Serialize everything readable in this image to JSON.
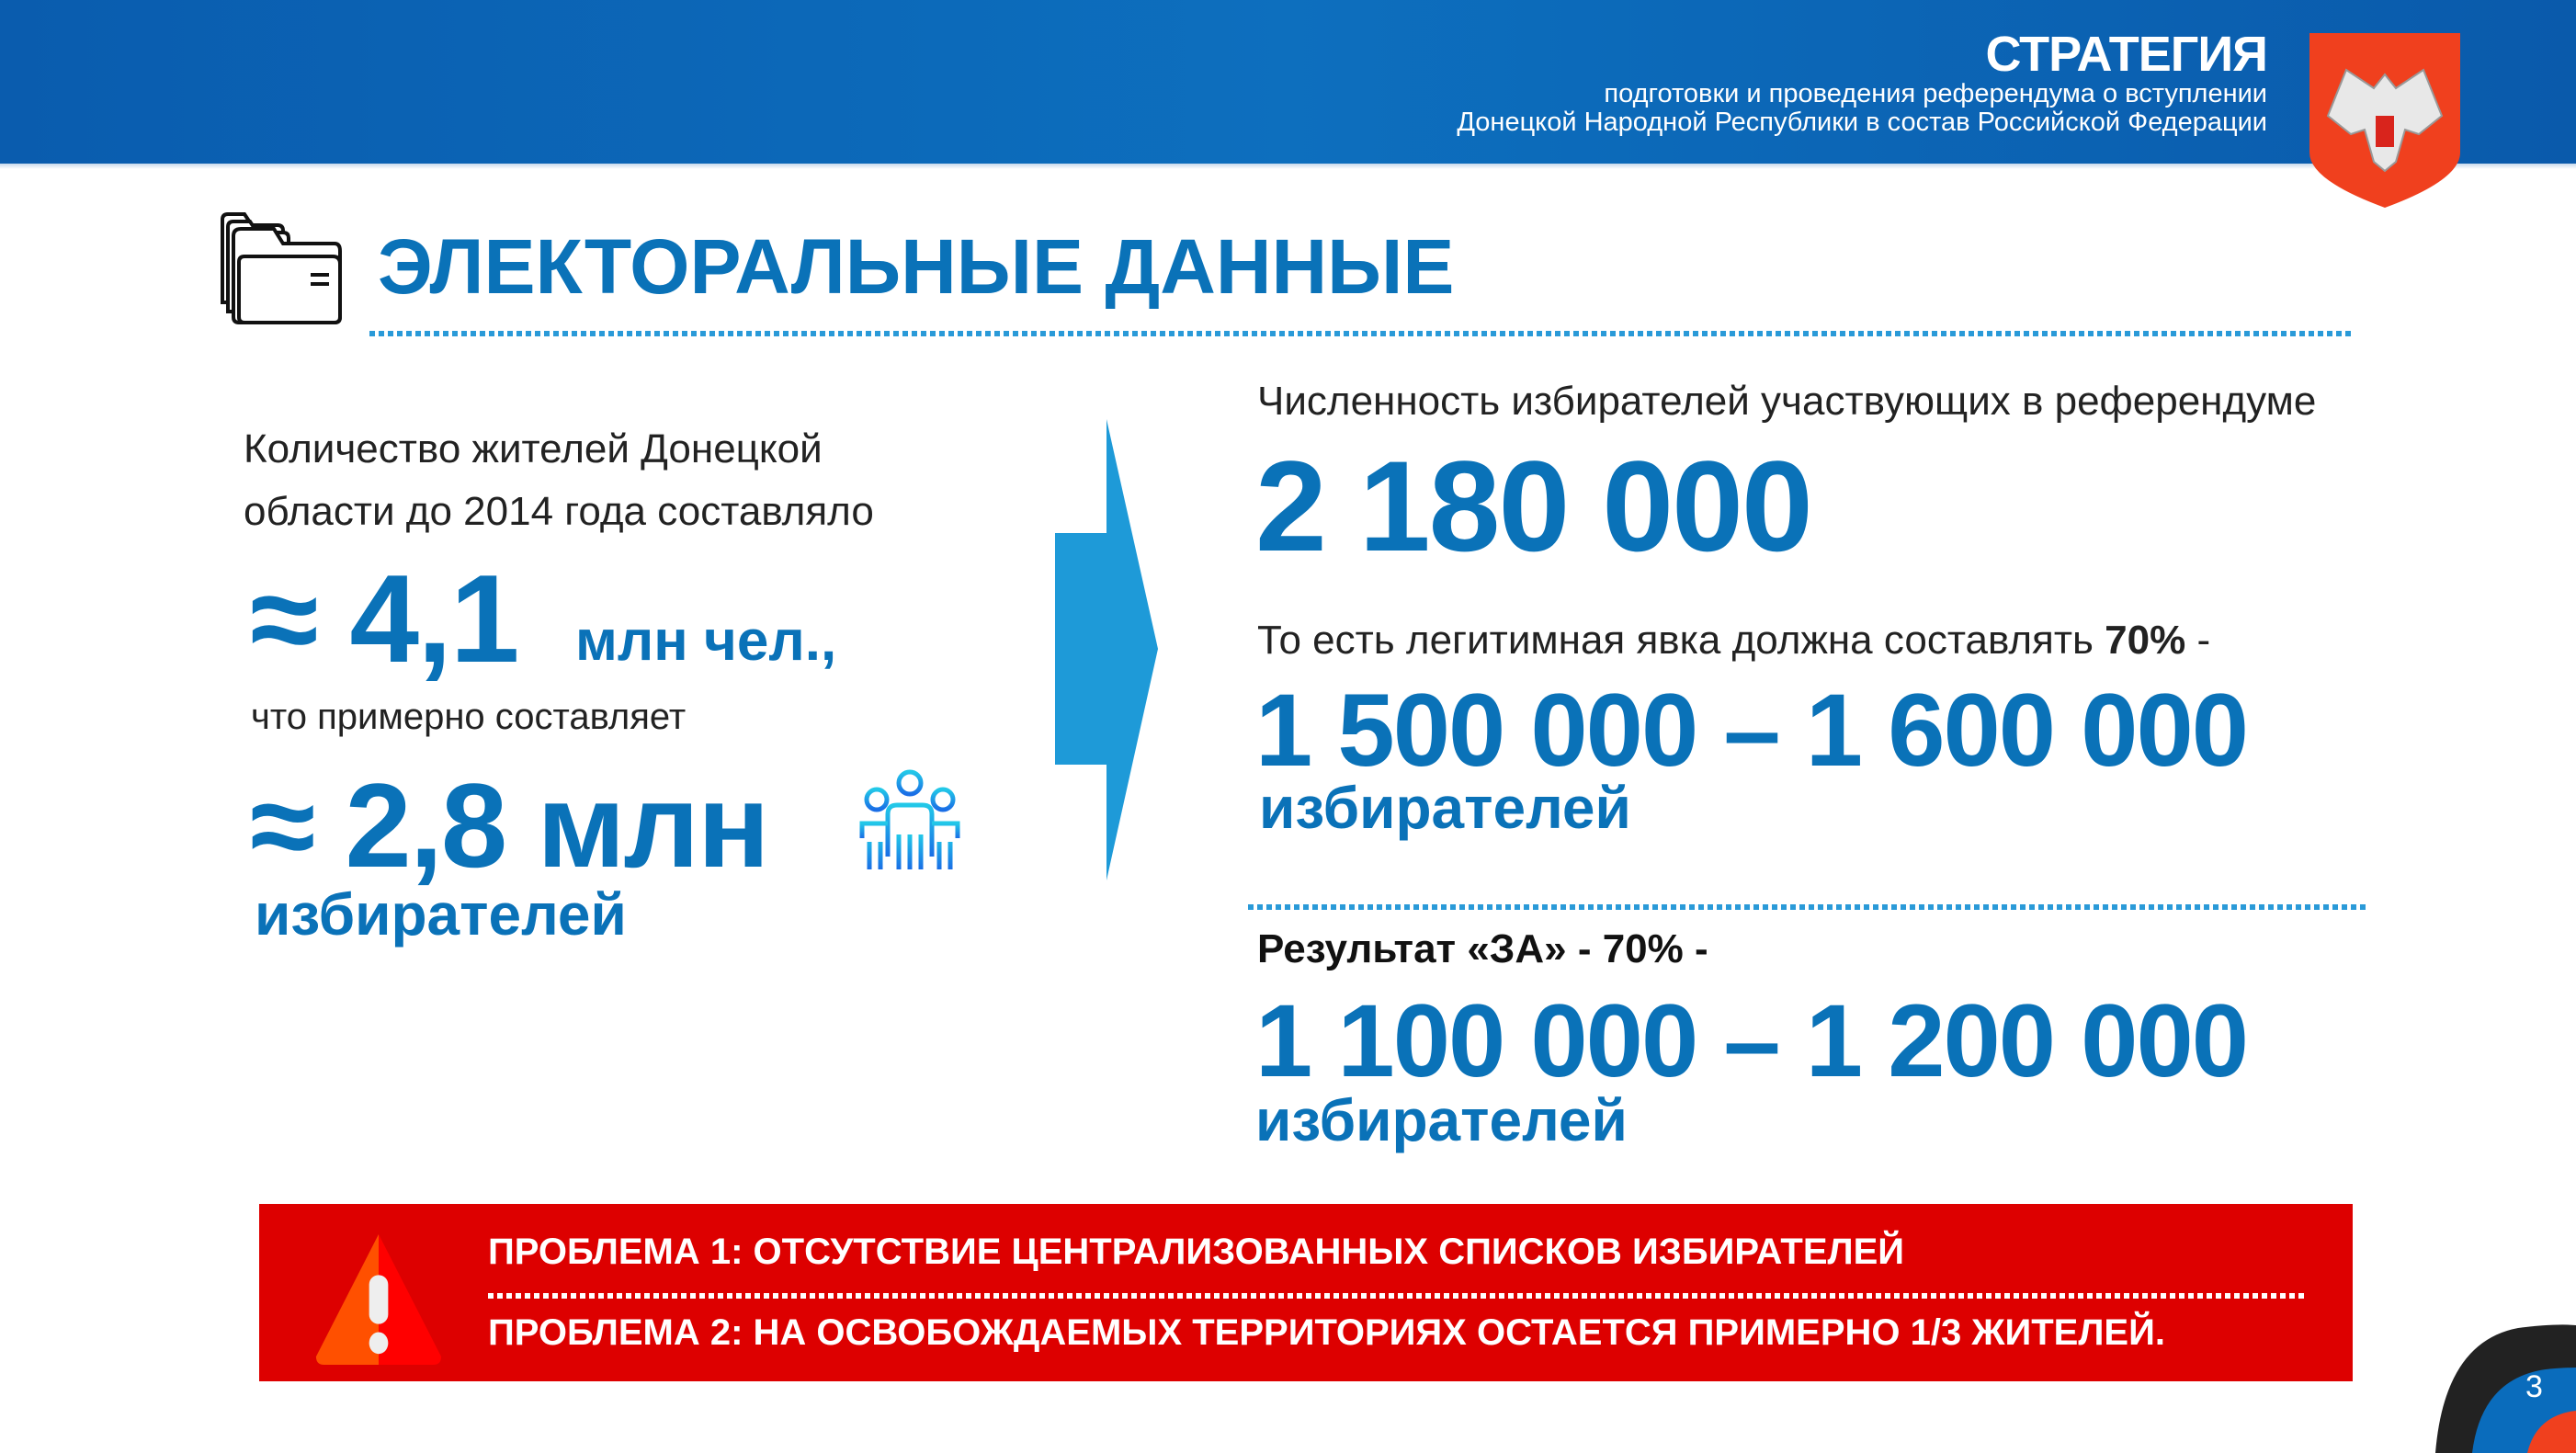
{
  "header": {
    "title": "СТРАТЕГИЯ",
    "subtitle_line1": "подготовки и проведения референдума о вступлении",
    "subtitle_line2": "Донецкой Народной Республики в состав Российской Федерации",
    "emblem": "dpr-coat-of-arms"
  },
  "page_title": "ЭЛЕКТОРАЛЬНЫЕ ДАННЫЕ",
  "left": {
    "intro_line1": "Количество жителей Донецкой",
    "intro_line2": "области до 2014 года составляло",
    "population_value": "≈ 4,1",
    "population_unit": "млн чел.,",
    "approx_text": "что примерно составляет",
    "voters_value": "≈ 2,8 млн",
    "voters_label": "избирателей"
  },
  "right": {
    "participants_label": "Численность избирателей участвующих в референдуме",
    "participants_value": "2 180 000",
    "turnout_label": "То есть легитимная явка должна составлять",
    "turnout_percent": "70%",
    "turnout_suffix": " -",
    "turnout_range": "1 500 000 – 1 600 000",
    "turnout_unit": "избирателей",
    "result_label": "Результат «ЗА» - 70% -",
    "result_range": "1 100 000 – 1 200 000",
    "result_unit": "избирателей"
  },
  "problems": {
    "problem1": "ПРОБЛЕМА 1: ОТСУТСТВИЕ ЦЕНТРАЛИЗОВАННЫХ СПИСКОВ ИЗБИРАТЕЛЕЙ",
    "problem2": "ПРОБЛЕМА 2:  НА ОСВОБОЖДАЕМЫХ ТЕРРИТОРИЯХ ОСТАЕТСЯ  ПРИМЕРНО 1/3 ЖИТЕЛЕЙ."
  },
  "page_number": "3",
  "colors": {
    "brand_blue": "#0a72b8",
    "header_blue": "#0a5cae",
    "alert_red": "#dd0000",
    "arrow_blue": "#1e9ad8"
  }
}
